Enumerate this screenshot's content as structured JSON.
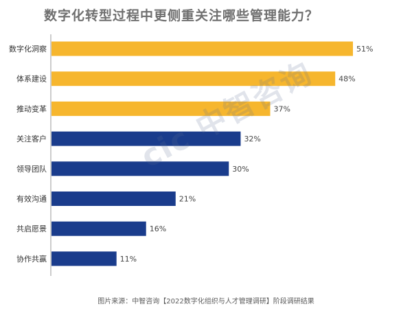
{
  "chart_data": {
    "type": "bar",
    "orientation": "horizontal",
    "title": "数字化转型过程中更侧重关注哪些管理能力？",
    "categories": [
      "数字化洞察",
      "体系建设",
      "推动变革",
      "关注客户",
      "领导团队",
      "有效沟通",
      "共启愿景",
      "协作共赢"
    ],
    "values": [
      51,
      48,
      37,
      32,
      30,
      21,
      16,
      11
    ],
    "value_labels": [
      "51%",
      "48%",
      "37%",
      "32%",
      "30%",
      "21%",
      "16%",
      "11%"
    ],
    "value_unit": "%",
    "bar_colors": [
      "#f6b62e",
      "#f6b62e",
      "#f6b62e",
      "#1a3c8c",
      "#1a3c8c",
      "#1a3c8c",
      "#1a3c8c",
      "#1a3c8c"
    ],
    "xlim": [
      0,
      55
    ],
    "grid": false,
    "legend": "none"
  },
  "watermark": "cic 中智咨询",
  "source": "图片来源：中智咨询【2022数字化组织与人才管理调研】阶段调研结果"
}
